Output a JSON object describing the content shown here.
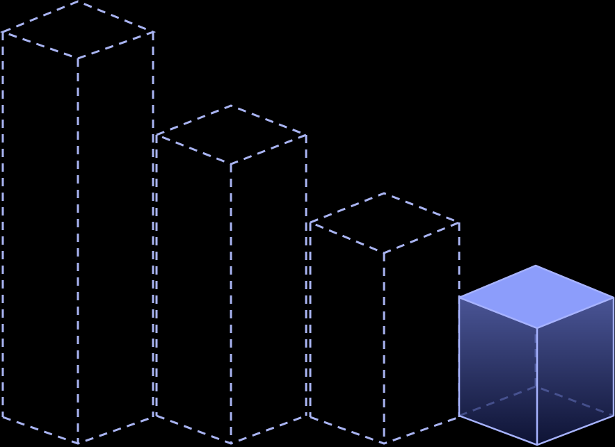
{
  "colors": {
    "background": "#000000",
    "dashed_outline": "#a9b4f2",
    "cube_top": "#8c9dfb",
    "cube_edge": "#a7b3ff",
    "cube_side_top": "#4a5596",
    "cube_side_bottom": "#0e1334"
  },
  "icons": {
    "bar_1": "dashed-tall-prism-icon",
    "bar_2": "dashed-medium-prism-icon",
    "bar_3": "dashed-short-prism-icon",
    "cube": "solid-cube-icon"
  }
}
